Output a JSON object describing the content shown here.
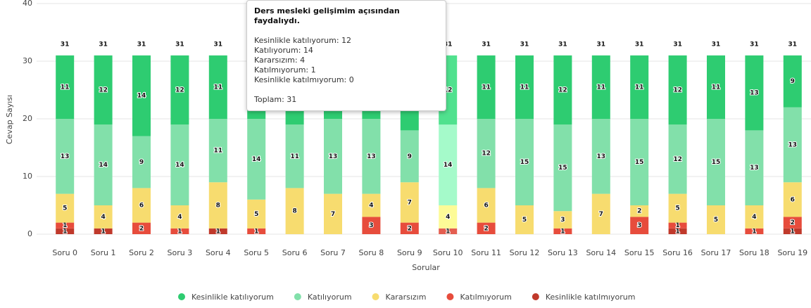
{
  "chart_data": {
    "type": "stacked_bar",
    "categories": [
      "Soru 0",
      "Soru 1",
      "Soru 2",
      "Soru 3",
      "Soru 4",
      "Soru 5",
      "Soru 6",
      "Soru 7",
      "Soru 8",
      "Soru 9",
      "Soru 10",
      "Soru 11",
      "Soru 12",
      "Soru 13",
      "Soru 14",
      "Soru 15",
      "Soru 16",
      "Soru 17",
      "Soru 18",
      "Soru 19"
    ],
    "series": [
      {
        "name": "Kesinlikle katılmıyorum",
        "color": "#c0392b",
        "values": [
          1,
          1,
          0,
          0,
          1,
          0,
          0,
          0,
          0,
          0,
          0,
          0,
          0,
          0,
          0,
          0,
          1,
          0,
          0,
          1
        ]
      },
      {
        "name": "Katılmıyorum",
        "color": "#e74c3c",
        "values": [
          1,
          0,
          2,
          1,
          0,
          1,
          0,
          0,
          3,
          2,
          1,
          2,
          0,
          1,
          0,
          3,
          1,
          0,
          1,
          2
        ]
      },
      {
        "name": "Kararsızım",
        "color": "#f7dc6f",
        "values": [
          5,
          4,
          6,
          4,
          8,
          5,
          8,
          7,
          4,
          7,
          4,
          6,
          5,
          3,
          7,
          2,
          5,
          5,
          4,
          6
        ]
      },
      {
        "name": "Katılıyorum",
        "color": "#82e0aa",
        "values": [
          13,
          14,
          9,
          14,
          11,
          14,
          11,
          13,
          13,
          9,
          14,
          12,
          15,
          15,
          13,
          15,
          12,
          15,
          13,
          13
        ]
      },
      {
        "name": "Kesinlikle katılıyorum",
        "color": "#2ecc71",
        "values": [
          11,
          12,
          14,
          12,
          11,
          11,
          12,
          11,
          11,
          13,
          12,
          11,
          11,
          12,
          11,
          11,
          12,
          11,
          13,
          9
        ]
      }
    ],
    "totals": [
      31,
      31,
      31,
      31,
      31,
      31,
      31,
      31,
      31,
      31,
      31,
      31,
      31,
      31,
      31,
      31,
      31,
      31,
      31,
      31
    ],
    "ylim": [
      0,
      40
    ],
    "yticks": [
      0,
      10,
      20,
      30,
      40
    ],
    "grid": true,
    "xlabel": "Sorular",
    "ylabel": "Cevap Sayısı",
    "legend": "bottom",
    "hovered": "Soru 10",
    "tooltip": {
      "title": "Ders mesleki gelişimim açısından faydalıydı.",
      "lines": [
        "Kesinlikle katılıyorum: 12",
        "Katılıyorum: 14",
        "Kararsızım: 4",
        "Katılmıyorum: 1",
        "Kesinlikle katılmıyorum: 0"
      ],
      "total": "Toplam: 31"
    }
  }
}
